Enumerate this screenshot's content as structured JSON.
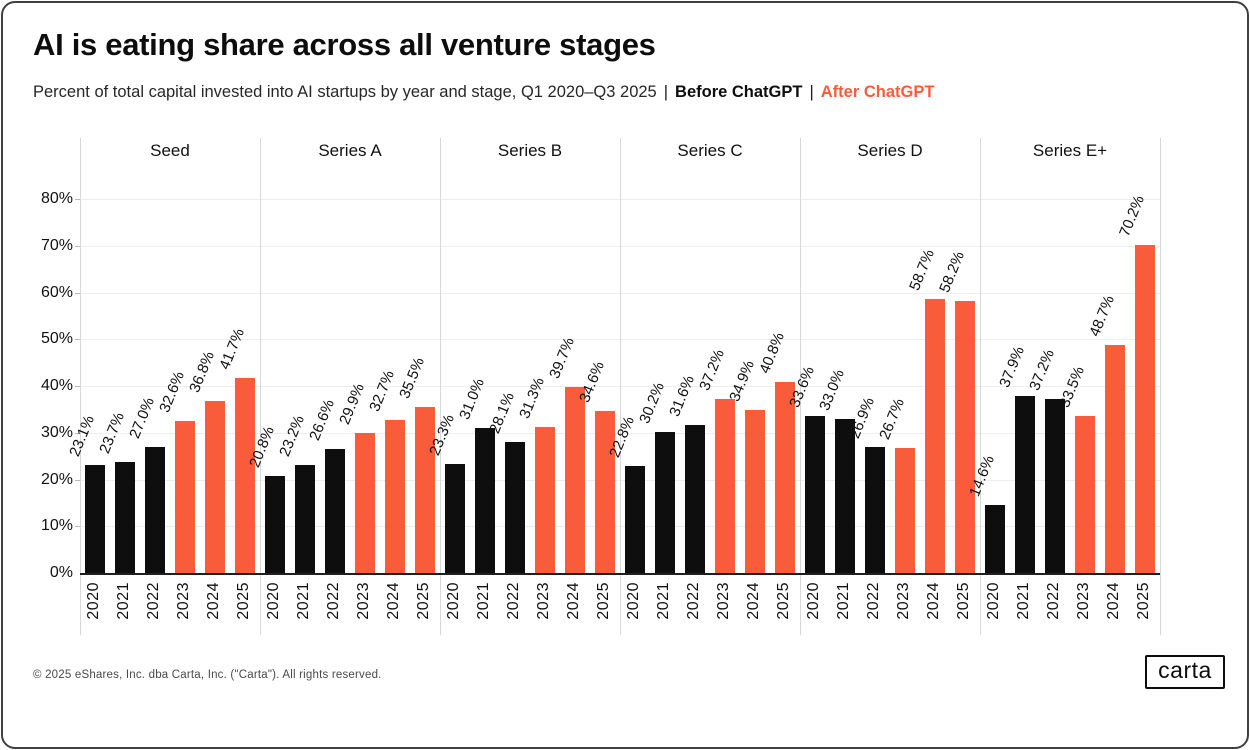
{
  "header": {
    "title": "AI is eating share across all venture stages",
    "subtitle_text": "Percent of total capital invested into AI startups by year and stage, Q1 2020–Q3 2025",
    "divider": "|",
    "legend_before": "Before ChatGPT",
    "legend_after": "After ChatGPT"
  },
  "colors": {
    "before": "#0e0e0e",
    "after": "#F95C3B",
    "grid": "#eeeeee",
    "separator": "#d8d8d8",
    "axis": "#1f1f1f"
  },
  "chart_data": {
    "type": "bar",
    "title": "AI is eating share across all venture stages",
    "subtitle": "Percent of total capital invested into AI startups by year and stage, Q1 2020–Q3 2025",
    "facet_by": "stage",
    "categories": [
      "2020",
      "2021",
      "2022",
      "2023",
      "2024",
      "2025"
    ],
    "series": [
      {
        "name": "Seed",
        "values": [
          23.1,
          23.7,
          27.0,
          32.6,
          36.8,
          41.7
        ]
      },
      {
        "name": "Series A",
        "values": [
          20.8,
          23.2,
          26.6,
          29.9,
          32.7,
          35.5
        ]
      },
      {
        "name": "Series B",
        "values": [
          23.3,
          31.0,
          28.1,
          31.3,
          39.7,
          34.6
        ]
      },
      {
        "name": "Series C",
        "values": [
          22.8,
          30.2,
          31.6,
          37.2,
          34.9,
          40.8
        ]
      },
      {
        "name": "Series D",
        "values": [
          33.6,
          33.0,
          26.9,
          26.7,
          58.7,
          58.2
        ]
      },
      {
        "name": "Series E+",
        "values": [
          14.6,
          37.9,
          37.2,
          33.5,
          48.7,
          70.2
        ]
      }
    ],
    "legend": {
      "before": {
        "label": "Before ChatGPT",
        "years": [
          "2020",
          "2021",
          "2022"
        ],
        "color": "#0e0e0e"
      },
      "after": {
        "label": "After ChatGPT",
        "years": [
          "2023",
          "2024",
          "2025"
        ],
        "color": "#F95C3B"
      }
    },
    "ylim": [
      0,
      80
    ],
    "yticks": [
      0,
      10,
      20,
      30,
      40,
      50,
      60,
      70,
      80
    ],
    "ytick_suffix": "%",
    "value_label_decimals": 1,
    "value_suffix": "%",
    "grid": "horizontal",
    "legend_position": "in-subtitle"
  },
  "footer": {
    "copyright": "© 2025 eShares, Inc. dba Carta, Inc. (\"Carta\"). All rights reserved.",
    "logo_text": "carta"
  }
}
